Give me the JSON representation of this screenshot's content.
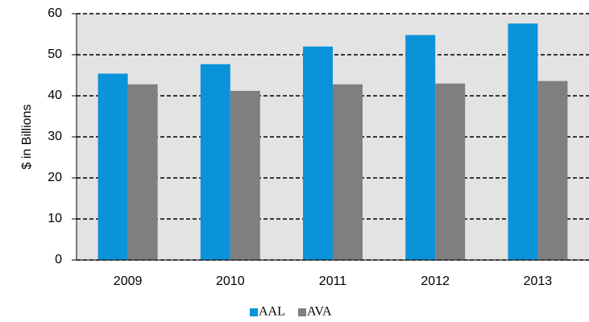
{
  "chart_data": {
    "type": "bar",
    "y_label": "$ in Billions",
    "categories": [
      "2009",
      "2010",
      "2011",
      "2012",
      "2013"
    ],
    "series": [
      {
        "name": "AAL",
        "color": "#0b93d9",
        "values": [
          45.4,
          47.7,
          52.0,
          54.8,
          57.6
        ]
      },
      {
        "name": "AVA",
        "color": "#7f7f7f",
        "values": [
          42.8,
          41.2,
          42.8,
          43.0,
          43.6
        ]
      }
    ],
    "ylim": [
      0,
      60
    ],
    "yticks": [
      0,
      10,
      20,
      30,
      40,
      50,
      60
    ],
    "grid": true,
    "plot_background": "#e3e3e3",
    "legend": "bottom"
  }
}
